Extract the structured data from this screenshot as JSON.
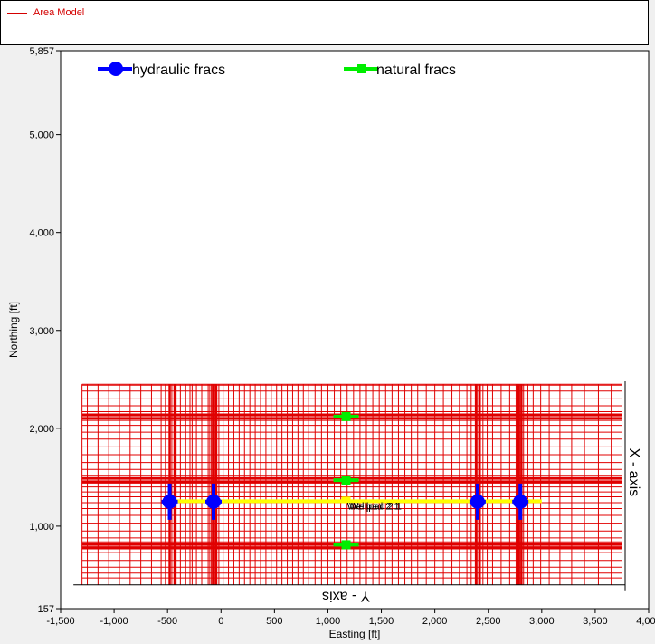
{
  "legend": {
    "label": "Area Model",
    "color": "#d40000"
  },
  "chart_data": {
    "type": "scatter",
    "xlabel": "Easting [ft]",
    "ylabel": "Northing [ft]",
    "xlim": [
      -1500,
      4000
    ],
    "ylim": [
      157,
      5857
    ],
    "xticks": [
      -1500,
      -1000,
      -500,
      0,
      500,
      1000,
      1500,
      2000,
      2500,
      3000,
      3500,
      4000
    ],
    "xtick_labels": [
      "-1,500",
      "-1,000",
      "-500",
      "0",
      "500",
      "1,000",
      "1,500",
      "2,000",
      "2,500",
      "3,000",
      "3,500",
      "4,000"
    ],
    "yticks": [
      157,
      1000,
      2000,
      3000,
      4000,
      5000,
      5857
    ],
    "ytick_labels": [
      "157",
      "1,000",
      "2,000",
      "3,000",
      "4,000",
      "5,000",
      "5,857"
    ],
    "grid_extent": {
      "x": [
        -1300,
        3750
      ],
      "y": [
        400,
        2450
      ]
    },
    "grid_x_lines": [
      -1250,
      -1150,
      -1050,
      -950,
      -850,
      -750,
      -650,
      -560,
      -520,
      -480,
      -460,
      -440,
      -420,
      -380,
      -330,
      -290,
      -270,
      -230,
      -180,
      -120,
      -105,
      -90,
      -75,
      -60,
      -45,
      -20,
      20,
      70,
      120,
      170,
      220,
      270,
      320,
      370,
      420,
      470,
      520,
      570,
      620,
      670,
      720,
      770,
      820,
      880,
      940,
      1000,
      1060,
      1120,
      1180,
      1240,
      1300,
      1360,
      1420,
      1480,
      1540,
      1600,
      1660,
      1720,
      1780,
      1840,
      1920,
      2000,
      2080,
      2160,
      2230,
      2300,
      2340,
      2380,
      2395,
      2410,
      2425,
      2450,
      2490,
      2540,
      2620,
      2700,
      2760,
      2780,
      2795,
      2810,
      2830,
      2870,
      2920,
      2990,
      3070,
      3170,
      3280,
      3400,
      3530,
      3650
    ],
    "grid_y_lines": [
      430,
      470,
      520,
      580,
      650,
      730,
      770,
      790,
      805,
      820,
      840,
      880,
      950,
      1030,
      1110,
      1180,
      1240,
      1300,
      1350,
      1400,
      1440,
      1455,
      1470,
      1485,
      1520,
      1580,
      1650,
      1730,
      1810,
      1890,
      1960,
      2030,
      2080,
      2100,
      2120,
      2140,
      2170,
      2230,
      2300,
      2380,
      2440
    ],
    "heavy_x_lines": [
      -480,
      -430,
      -75,
      -45,
      2385,
      2420,
      2780,
      2810
    ],
    "heavy_y_lines": [
      775,
      810,
      1450,
      1490,
      2100,
      2140
    ],
    "well": {
      "name": "Wellpad 2 1",
      "overlap_text": "Wellpad 2 1",
      "x": [
        -470,
        3000
      ],
      "y": 1255,
      "color": "#ffff00"
    },
    "series": [
      {
        "name": "hydraulic fracs",
        "color": "#0000ff",
        "points": [
          {
            "x": -480,
            "y": 1250
          },
          {
            "x": -70,
            "y": 1250
          },
          {
            "x": 2400,
            "y": 1250
          },
          {
            "x": 2800,
            "y": 1250
          }
        ]
      },
      {
        "name": "natural fracs",
        "color": "#00ee00",
        "points": [
          {
            "x": 1170,
            "y": 2120
          },
          {
            "x": 1170,
            "y": 1470
          },
          {
            "x": 1170,
            "y": 810
          }
        ]
      }
    ],
    "annotations": {
      "x_axis_label": "X - axis",
      "y_axis_label": "Y - axis"
    }
  }
}
